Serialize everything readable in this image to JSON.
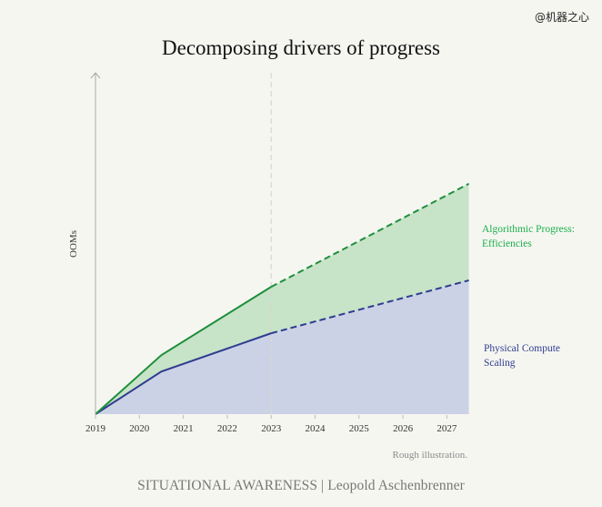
{
  "watermark": "@机器之心",
  "footnote": "Rough illustration.",
  "credit": "SITUATIONAL AWARENESS | Leopold Aschenbrenner",
  "chart_data": {
    "type": "area",
    "title": "Decomposing drivers of progress",
    "xlabel": "",
    "ylabel": "OOMs",
    "xlim": [
      2019,
      2027.5
    ],
    "ylim": [
      0,
      10
    ],
    "x_ticks": [
      2019,
      2020,
      2021,
      2022,
      2023,
      2024,
      2025,
      2026,
      2027
    ],
    "grid": false,
    "divider_year": 2023,
    "annotation": "Rough illustration.",
    "series": [
      {
        "name": "Physical Compute Scaling",
        "label_lines": [
          "Physical Compute",
          "Scaling"
        ],
        "color": "#2e3d8f",
        "fill": "#ccd2e6",
        "x": [
          2019,
          2020.5,
          2023,
          2027.5
        ],
        "values": [
          0,
          1.25,
          2.37,
          3.92
        ],
        "solid_until": 2023
      },
      {
        "name": "Algorithmic Progress: Efficiencies",
        "label_lines": [
          "Algorithmic Progress:",
          "Efficiencies"
        ],
        "color": "#1e8f3c",
        "label_color": "#19b04a",
        "fill": "#c7e3c8",
        "x": [
          2019,
          2020.5,
          2023,
          2027.5
        ],
        "values": [
          0,
          1.73,
          3.73,
          6.75
        ],
        "solid_until": 2023
      }
    ]
  }
}
